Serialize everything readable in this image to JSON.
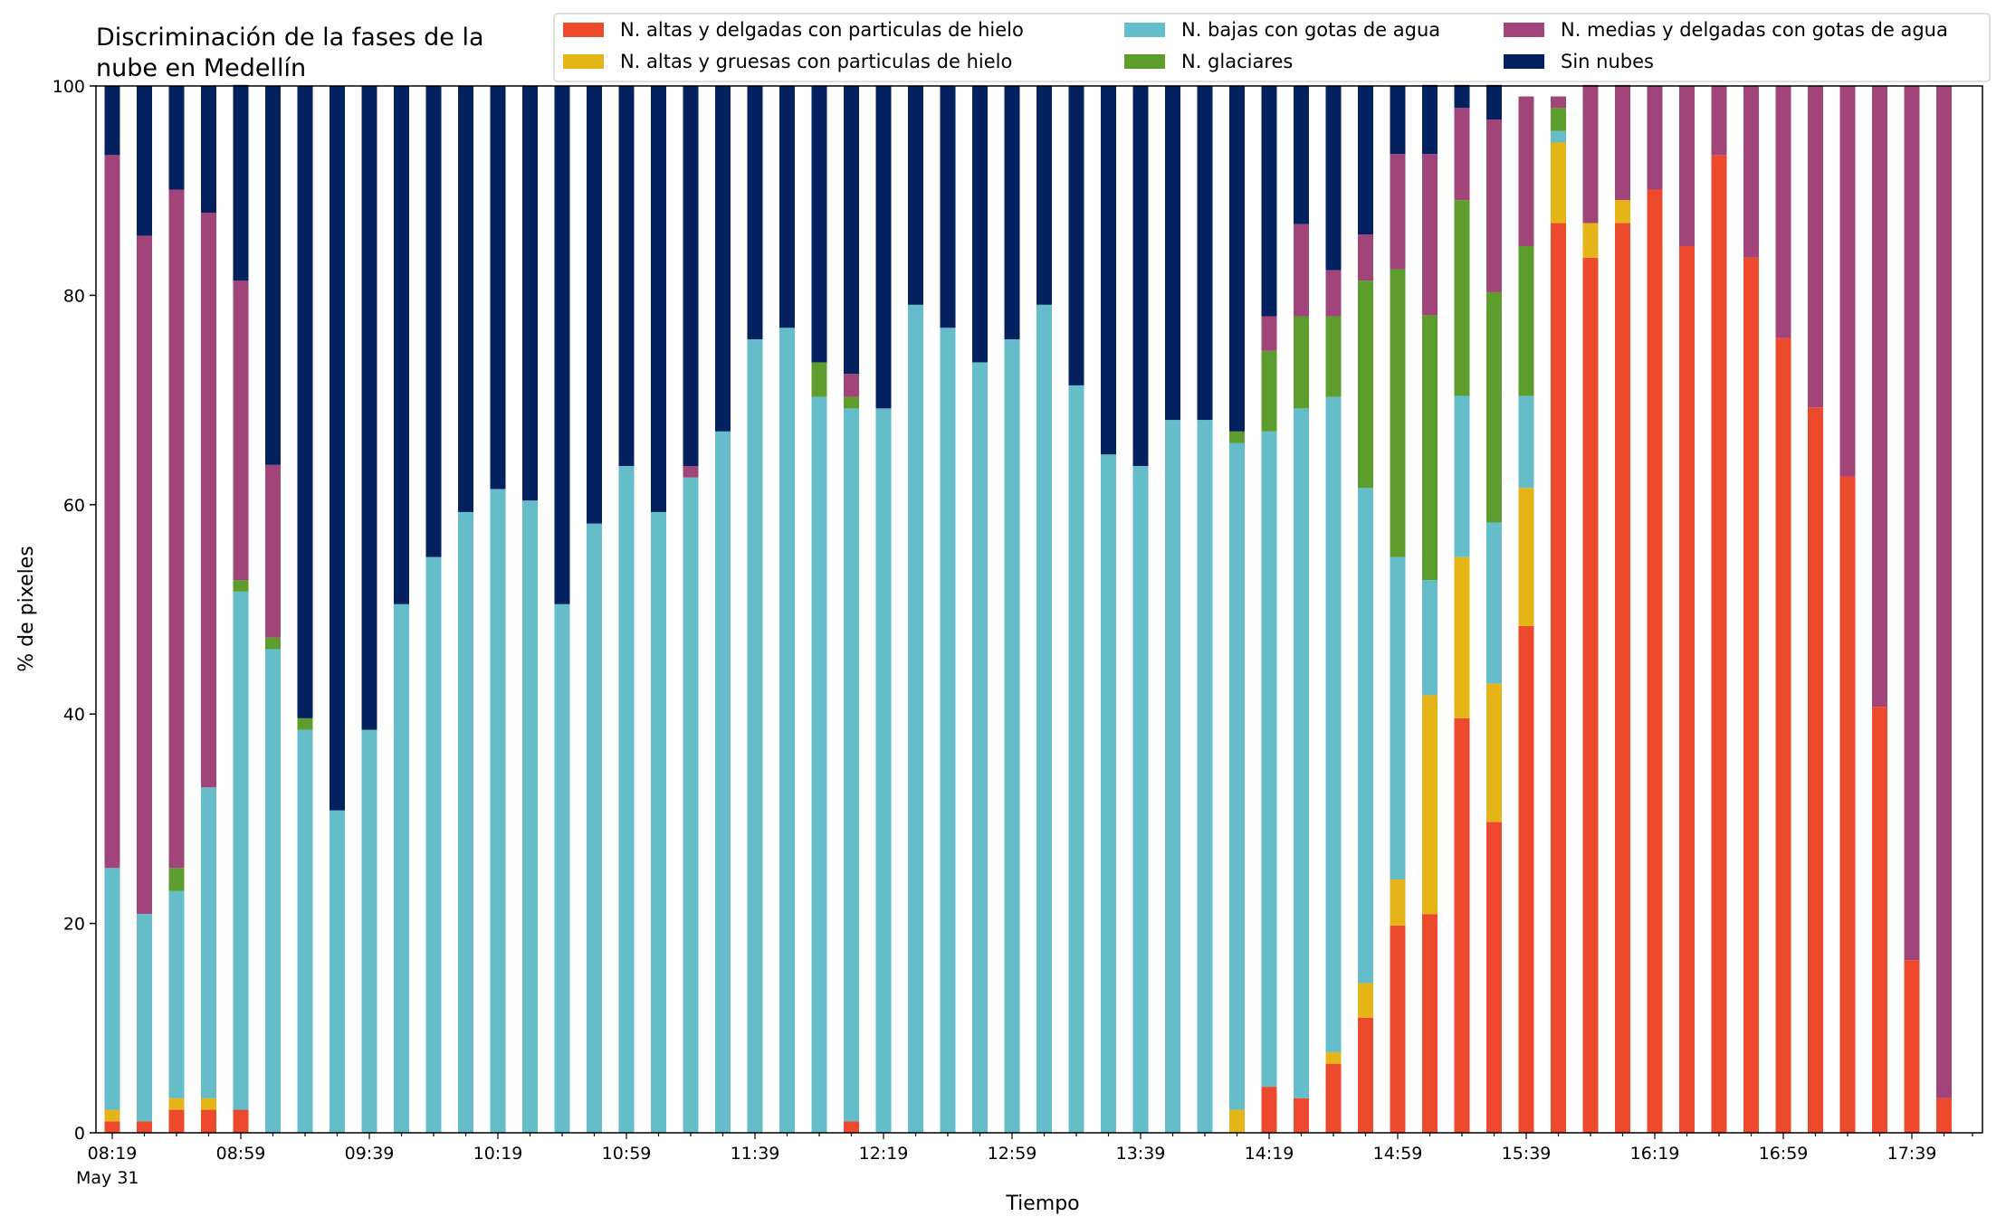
{
  "chart_data": {
    "type": "bar",
    "stacked": true,
    "title": "Discriminación de la fases de la\nnube en Medellín",
    "xlabel": "Tiempo",
    "ylabel": "% de pixeles",
    "ylim": [
      0,
      100
    ],
    "yticks": [
      0,
      20,
      40,
      60,
      80,
      100
    ],
    "x_tick_labels": [
      "08:19",
      "08:59",
      "09:39",
      "10:19",
      "10:59",
      "11:39",
      "12:19",
      "12:59",
      "13:39",
      "14:19",
      "14:59",
      "15:39",
      "16:19",
      "16:59",
      "17:39"
    ],
    "x_date_label": "May 31",
    "legend_position": "top-right",
    "legend_columns": 3,
    "series": [
      {
        "name": "N. altas y delgadas con particulas de hielo",
        "color": "#ed4a2d",
        "values": [
          1.1,
          1.1,
          2.2,
          2.2,
          2.2,
          0,
          0,
          0,
          0,
          0,
          0,
          0,
          0,
          0,
          0,
          0,
          0,
          0,
          0,
          0,
          0,
          0,
          0,
          1.1,
          0,
          0,
          0,
          0,
          0,
          0,
          0,
          0,
          0,
          0,
          0,
          0,
          4.4,
          3.3,
          6.6,
          11,
          19.8,
          20.9,
          39.6,
          29.7,
          48.4,
          86.9,
          83.6,
          86.9,
          90.1,
          84.7,
          93.4,
          83.6,
          75.9,
          69.3,
          62.7,
          40.7,
          16.5,
          3.3
        ]
      },
      {
        "name": "N. altas y gruesas con particulas de hielo",
        "color": "#e5b518",
        "values": [
          1.1,
          0,
          1.1,
          1.1,
          0,
          0,
          0,
          0,
          0,
          0,
          0,
          0,
          0,
          0,
          0,
          0,
          0,
          0,
          0,
          0,
          0,
          0,
          0,
          0,
          0,
          0,
          0,
          0,
          0,
          0,
          0,
          0,
          0,
          0,
          0,
          2.2,
          0,
          0,
          1.1,
          3.3,
          4.4,
          20.9,
          15.4,
          13.2,
          13.2,
          7.7,
          3.3,
          2.2,
          0,
          0,
          0,
          0,
          0,
          0,
          0,
          0,
          0,
          0
        ]
      },
      {
        "name": "N. bajas con gotas de agua",
        "color": "#64bdc8",
        "values": [
          23.1,
          19.8,
          19.8,
          29.7,
          49.5,
          46.2,
          38.5,
          30.8,
          38.5,
          50.5,
          55,
          59.3,
          61.5,
          60.4,
          50.5,
          58.2,
          63.7,
          59.3,
          62.6,
          67,
          75.8,
          76.9,
          70.3,
          68.1,
          69.2,
          79.1,
          76.9,
          73.6,
          75.8,
          79.1,
          71.4,
          64.8,
          63.7,
          68.1,
          68.1,
          63.7,
          62.6,
          65.9,
          62.6,
          47.3,
          30.8,
          11,
          15.4,
          15.4,
          8.8,
          1.1,
          0,
          0,
          0,
          0,
          0,
          0,
          0,
          0,
          0,
          0,
          0,
          0
        ]
      },
      {
        "name": "N. glaciares",
        "color": "#5c9d2d",
        "values": [
          0,
          0,
          2.2,
          0,
          1.1,
          1.1,
          1.1,
          0,
          0,
          0,
          0,
          0,
          0,
          0,
          0,
          0,
          0,
          0,
          0,
          0,
          0,
          0,
          3.3,
          1.1,
          0,
          0,
          0,
          0,
          0,
          0,
          0,
          0,
          0,
          0,
          0,
          1.1,
          7.7,
          8.8,
          7.7,
          19.8,
          27.5,
          25.3,
          18.7,
          22,
          14.3,
          2.2,
          0,
          0,
          0,
          0,
          0,
          0,
          0,
          0,
          0,
          0,
          0,
          0
        ]
      },
      {
        "name": "N. medias y delgadas con gotas de agua",
        "color": "#a1447a",
        "values": [
          68.1,
          64.8,
          64.8,
          54.9,
          28.6,
          16.5,
          0,
          0,
          0,
          0,
          0,
          0,
          0,
          0,
          0,
          0,
          0,
          0,
          1.1,
          0,
          0,
          0,
          0,
          2.2,
          0,
          0,
          0,
          0,
          0,
          0,
          0,
          0,
          0,
          0,
          0,
          0,
          3.3,
          8.8,
          4.4,
          4.4,
          11,
          15.4,
          8.8,
          16.5,
          14.3,
          1.1,
          13.2,
          11,
          9.9,
          15.3,
          6.6,
          16.4,
          24.1,
          30.7,
          37.3,
          59.3,
          83.5,
          96.7
        ]
      },
      {
        "name": "Sin nubes",
        "color": "#03205f",
        "values": [
          6.6,
          14.3,
          9.9,
          12.1,
          18.7,
          36.2,
          60.4,
          69.2,
          61.5,
          49.5,
          45,
          40.7,
          38.5,
          39.6,
          49.5,
          41.8,
          36.3,
          40.7,
          36.3,
          33,
          24.2,
          23.1,
          26.4,
          27.5,
          30.8,
          20.9,
          23.1,
          26.4,
          24.2,
          20.9,
          28.6,
          35.2,
          36.3,
          31.9,
          31.9,
          33,
          22,
          13.2,
          17.6,
          14.2,
          6.5,
          6.6,
          2.2,
          3.3,
          0,
          0,
          0,
          0,
          0,
          0,
          0,
          0,
          0,
          0,
          0,
          0,
          0,
          0
        ]
      }
    ]
  }
}
